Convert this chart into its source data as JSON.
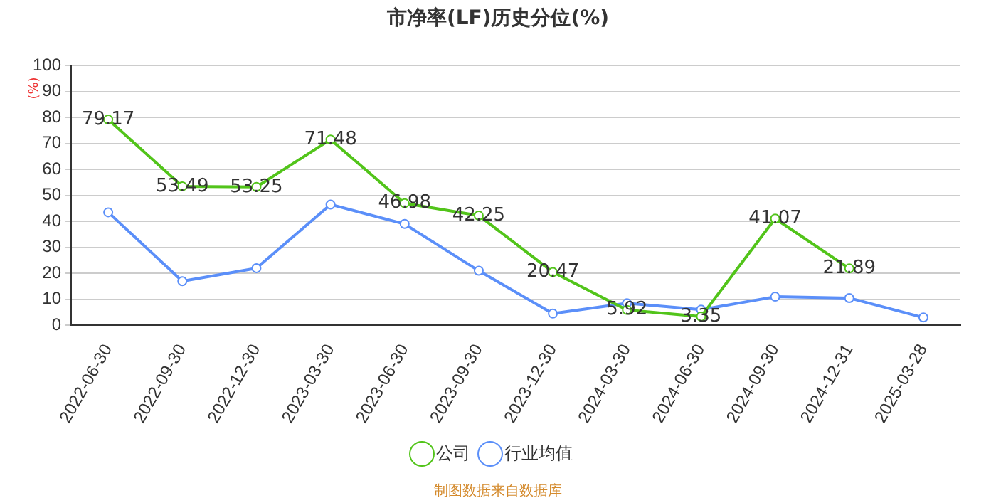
{
  "chart_data": {
    "type": "line",
    "title": "市净率(LF)历史分位(%)",
    "ylabel": "(%)",
    "categories": [
      "2022-06-30",
      "2022-09-30",
      "2022-12-30",
      "2023-03-30",
      "2023-06-30",
      "2023-09-30",
      "2023-12-30",
      "2024-03-30",
      "2024-06-30",
      "2024-09-30",
      "2024-12-31",
      "2025-03-28"
    ],
    "series": [
      {
        "name": "公司",
        "color": "#52c41a",
        "values": [
          79.17,
          53.49,
          53.25,
          71.48,
          46.98,
          42.25,
          20.47,
          5.92,
          3.35,
          41.07,
          21.89,
          null
        ],
        "value_labels": [
          "79.17",
          "53.49",
          "53.25",
          "71.48",
          "46.98",
          "42.25",
          "20.47",
          "5.92",
          "3.35",
          "41.07",
          "21.89",
          null
        ]
      },
      {
        "name": "行业均值",
        "color": "#5b8ff9",
        "values": [
          43.5,
          17,
          22,
          46.5,
          39,
          21,
          4.5,
          8.5,
          6,
          11,
          10.5,
          3
        ]
      }
    ],
    "ylim": [
      0,
      100
    ],
    "yticks": [
      0,
      10,
      20,
      30,
      40,
      50,
      60,
      70,
      80,
      90,
      100
    ],
    "grid": "y",
    "legend": "bottom",
    "marker": "circle",
    "line_style": "solid",
    "annotations": [
      "制图数据来自数据库"
    ]
  }
}
